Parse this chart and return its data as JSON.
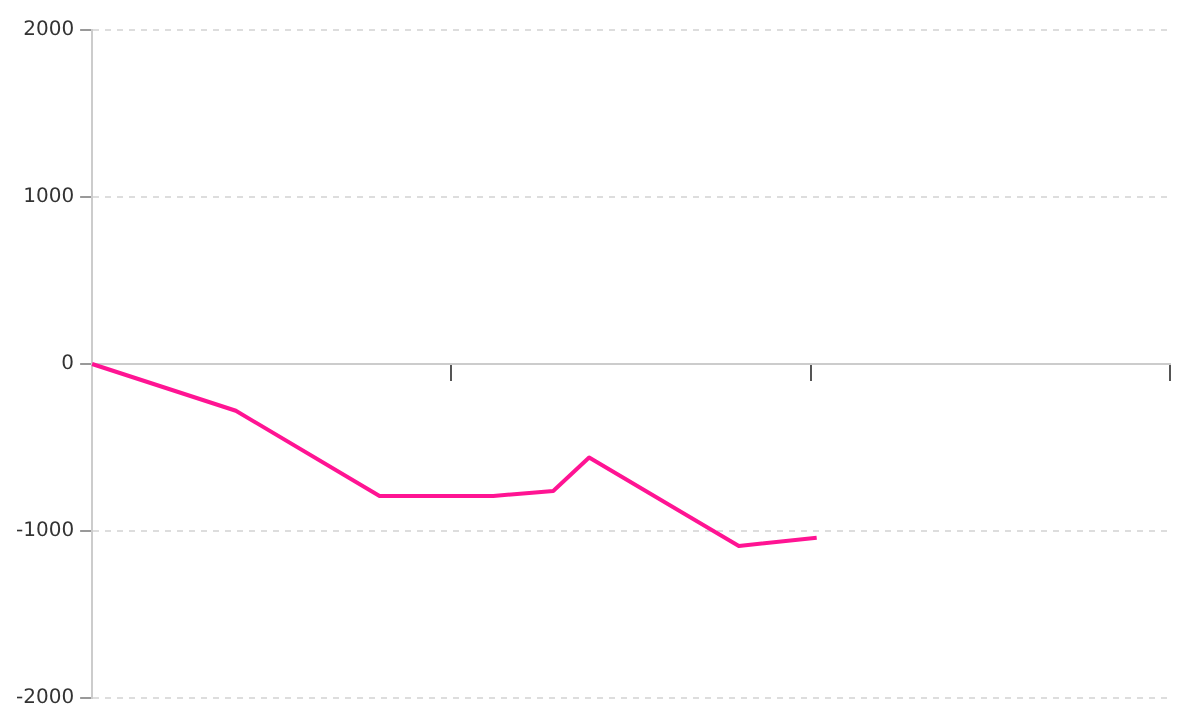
{
  "chart_data": {
    "type": "line",
    "categories": [
      null,
      null,
      null,
      null,
      null,
      null,
      null,
      null,
      null,
      null,
      null,
      null,
      null,
      null,
      null,
      null,
      null,
      null,
      null,
      null,
      null,
      null,
      null,
      null,
      null,
      null,
      null,
      null,
      null,
      null,
      null,
      null,
      null,
      null,
      null,
      null,
      null,
      null,
      null,
      null,
      null,
      null,
      null,
      null,
      null,
      null,
      null,
      null,
      null,
      null,
      null,
      null,
      null,
      null,
      null,
      null,
      null,
      null,
      null,
      null,
      null,
      null,
      null,
      null,
      null,
      null,
      null,
      null,
      null,
      null,
      null,
      null,
      null,
      null,
      null,
      null,
      null,
      null,
      null,
      null,
      null,
      null,
      null,
      null,
      null,
      null,
      null,
      null,
      null,
      null,
      null,
      null,
      null,
      null,
      null,
      null,
      null,
      null,
      null,
      null,
      null,
      null,
      null,
      null,
      null,
      null,
      null,
      null,
      null,
      null,
      null,
      null,
      null,
      null,
      null,
      null,
      null,
      null,
      null,
      null,
      null,
      null,
      null,
      null,
      null,
      null,
      null,
      null,
      null,
      null,
      null,
      null,
      null,
      null,
      null,
      null,
      null,
      null,
      null,
      null,
      null,
      null,
      null,
      null,
      null,
      null,
      null,
      null,
      null,
      null,
      null,
      null,
      null,
      null,
      null,
      null,
      null,
      null,
      null,
      null,
      null,
      null,
      null,
      null,
      null,
      null,
      null,
      null,
      null,
      null,
      null,
      null,
      null,
      null,
      null,
      null,
      null,
      null,
      null,
      null,
      null
    ],
    "series": [
      {
        "color": "#ff1493",
        "values": [
          0,
          null,
          null,
          null,
          null,
          null,
          null,
          null,
          null,
          null,
          null,
          null,
          null,
          null,
          null,
          null,
          null,
          null,
          null,
          null,
          null,
          null,
          null,
          null,
          -280,
          null,
          null,
          null,
          null,
          null,
          null,
          null,
          null,
          null,
          null,
          null,
          null,
          null,
          null,
          null,
          null,
          null,
          null,
          null,
          null,
          null,
          null,
          null,
          -790,
          null,
          null,
          null,
          null,
          null,
          null,
          null,
          null,
          null,
          null,
          null,
          null,
          null,
          null,
          null,
          null,
          null,
          null,
          -790,
          null,
          null,
          null,
          null,
          null,
          null,
          -770,
          null,
          null,
          -760,
          null,
          null,
          null,
          null,
          null,
          -560,
          null,
          null,
          null,
          null,
          null,
          null,
          null,
          null,
          null,
          null,
          null,
          null,
          null,
          null,
          null,
          null,
          null,
          null,
          null,
          null,
          null,
          null,
          null,
          null,
          -1090,
          null,
          null,
          null,
          null,
          null,
          null,
          null,
          null,
          null,
          null,
          null,
          null,
          -1040,
          null,
          null,
          null,
          null,
          null,
          null,
          null,
          null,
          null,
          null,
          null,
          null,
          null,
          null,
          null,
          null,
          null,
          null,
          null,
          null,
          null,
          null,
          null,
          null,
          null,
          null,
          null,
          null,
          null,
          null,
          null,
          null,
          null,
          null,
          null,
          null,
          null,
          null,
          null,
          null,
          null,
          null,
          null,
          null,
          null,
          null,
          null,
          null,
          null,
          null,
          null,
          null,
          null,
          null,
          null,
          null,
          null,
          null,
          null
        ]
      }
    ],
    "ylim": [
      -2000,
      2000
    ],
    "yticks": [
      -2000,
      -1000,
      0,
      1000,
      2000
    ],
    "grid": "y",
    "legend": false,
    "tick_labels": "y",
    "marker": "none",
    "line_style": "solid"
  }
}
